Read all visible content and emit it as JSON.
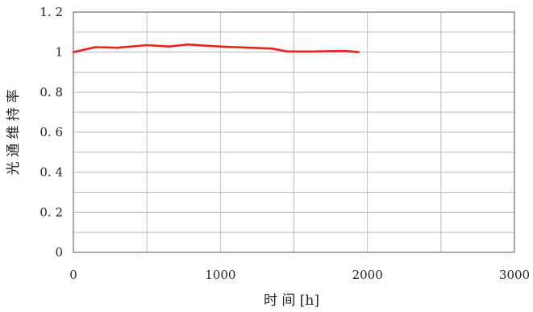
{
  "chart_data": {
    "type": "line",
    "xlabel": "时 间 [h]",
    "ylabel": "光 通 维 持 率",
    "xlim": [
      0,
      3000
    ],
    "ylim": [
      0,
      1.2
    ],
    "xticks": [
      0,
      1000,
      2000,
      3000
    ],
    "xtick_labels": [
      "0",
      "1000",
      "2000",
      "3000"
    ],
    "yticks": [
      0,
      0.2,
      0.4,
      0.6,
      0.8,
      1,
      1.2
    ],
    "ytick_labels": [
      "0",
      "0. 2",
      "0. 4",
      "0. 6",
      "0. 8",
      "1",
      "1. 2"
    ],
    "x_grid_step": 500,
    "y_grid_step": 0.1,
    "grid": true,
    "legend": "none",
    "series": [
      {
        "color": "#e8221c",
        "x": [
          0,
          60,
          150,
          300,
          500,
          650,
          780,
          900,
          1050,
          1200,
          1350,
          1450,
          1600,
          1750,
          1850,
          1940
        ],
        "y": [
          1.0,
          1.01,
          1.025,
          1.022,
          1.035,
          1.028,
          1.038,
          1.032,
          1.026,
          1.022,
          1.018,
          1.004,
          1.003,
          1.005,
          1.006,
          1.0
        ]
      }
    ]
  }
}
